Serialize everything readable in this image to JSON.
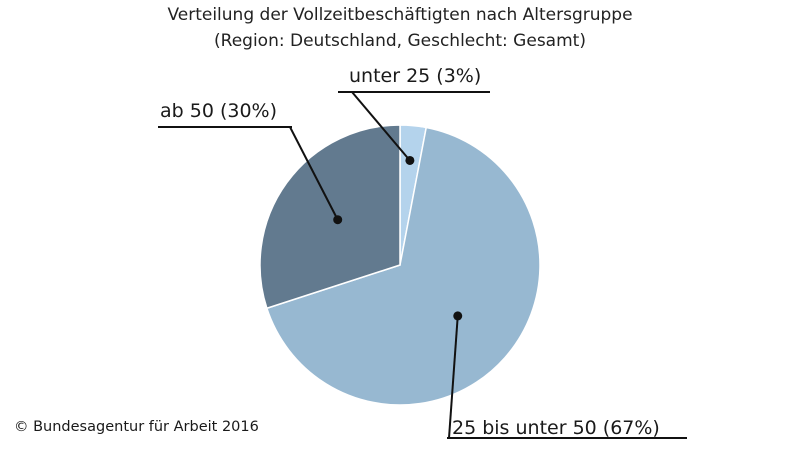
{
  "chart_data": {
    "type": "pie",
    "title": "Verteilung der Vollzeitbeschäftigten nach Altersgruppe",
    "subtitle": "(Region: Deutschland, Geschlecht: Gesamt)",
    "categories": [
      "unter 25",
      "25 bis unter 50",
      "ab 50"
    ],
    "values": [
      3,
      67,
      30
    ],
    "unit": "%",
    "labels": [
      "unter 25 (3%)",
      "25 bis unter 50 (67%)",
      "ab 50 (30%)"
    ],
    "colors": [
      "#b4d3ec",
      "#97b8d1",
      "#627a8f"
    ],
    "legend": "none"
  },
  "footer": {
    "copyright": "© Bundesagentur für Arbeit 2016"
  }
}
